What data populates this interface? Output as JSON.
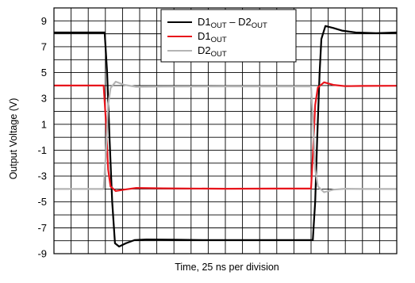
{
  "chart_data": {
    "type": "line",
    "xlabel": "Time, 25 ns per division",
    "ylabel": "Output Voltage (V)",
    "xlim": [
      0,
      10
    ],
    "ylim": [
      -9,
      10
    ],
    "y_ticks": [
      9,
      7,
      5,
      3,
      1,
      -1,
      -3,
      -5,
      -7,
      -9
    ],
    "x_gridlines": [
      0,
      0.5,
      1,
      1.5,
      2,
      2.5,
      3,
      3.5,
      4,
      4.5,
      5,
      5.5,
      6,
      6.5,
      7,
      7.5,
      8,
      8.5,
      9,
      9.5,
      10
    ],
    "y_gridlines": [
      -9,
      -8,
      -7,
      -6,
      -5,
      -4,
      -3,
      -2,
      -1,
      0,
      1,
      2,
      3,
      4,
      5,
      6,
      7,
      8,
      9,
      10
    ],
    "grid": true,
    "legend_position": "top-right",
    "series": [
      {
        "name": "D1OUT – D2OUT",
        "name_main_1": "D1",
        "name_sub_1": "OUT",
        "name_mid": " – D2",
        "name_sub_2": "OUT",
        "color": "#000000",
        "points": [
          [
            0,
            8.1
          ],
          [
            1.48,
            8.1
          ],
          [
            1.55,
            5
          ],
          [
            1.62,
            0
          ],
          [
            1.7,
            -5
          ],
          [
            1.78,
            -8.2
          ],
          [
            1.9,
            -8.45
          ],
          [
            2.1,
            -8.2
          ],
          [
            2.35,
            -7.95
          ],
          [
            2.7,
            -7.9
          ],
          [
            3.5,
            -7.92
          ],
          [
            4.5,
            -7.95
          ],
          [
            6,
            -7.95
          ],
          [
            7.55,
            -7.95
          ],
          [
            7.62,
            -5
          ],
          [
            7.68,
            0
          ],
          [
            7.75,
            5
          ],
          [
            7.8,
            7.6
          ],
          [
            7.92,
            8.6
          ],
          [
            8.15,
            8.45
          ],
          [
            8.4,
            8.25
          ],
          [
            8.8,
            8.1
          ],
          [
            9.4,
            8.05
          ],
          [
            10,
            8.1
          ]
        ]
      },
      {
        "name": "D1OUT",
        "name_main_1": "D1",
        "name_sub_1": "OUT",
        "color": "#e8141b",
        "points": [
          [
            0,
            4
          ],
          [
            1.45,
            4
          ],
          [
            1.52,
            1
          ],
          [
            1.58,
            -2.5
          ],
          [
            1.65,
            -3.8
          ],
          [
            1.8,
            -4.15
          ],
          [
            2.05,
            -4.05
          ],
          [
            2.4,
            -3.92
          ],
          [
            3.2,
            -3.95
          ],
          [
            5,
            -3.98
          ],
          [
            6.5,
            -3.97
          ],
          [
            7.5,
            -3.97
          ],
          [
            7.56,
            -1
          ],
          [
            7.62,
            2.5
          ],
          [
            7.7,
            3.85
          ],
          [
            7.88,
            4.25
          ],
          [
            8.15,
            4.05
          ],
          [
            8.5,
            3.95
          ],
          [
            9,
            3.97
          ],
          [
            10,
            3.98
          ]
        ]
      },
      {
        "name": "D2OUT",
        "name_main_1": "D2",
        "name_sub_1": "OUT",
        "color": "#b4b4b4",
        "points": [
          [
            0,
            -4
          ],
          [
            1.45,
            -4
          ],
          [
            1.52,
            -1
          ],
          [
            1.58,
            2.5
          ],
          [
            1.65,
            3.8
          ],
          [
            1.8,
            4.3
          ],
          [
            2.05,
            4.05
          ],
          [
            2.4,
            3.9
          ],
          [
            3.2,
            3.92
          ],
          [
            5,
            3.93
          ],
          [
            6.5,
            3.93
          ],
          [
            7.5,
            3.93
          ],
          [
            7.56,
            1
          ],
          [
            7.62,
            -2.5
          ],
          [
            7.7,
            -3.8
          ],
          [
            7.88,
            -4.25
          ],
          [
            8.15,
            -4.05
          ],
          [
            8.5,
            -3.98
          ],
          [
            9,
            -4
          ],
          [
            10,
            -4
          ]
        ]
      }
    ]
  }
}
